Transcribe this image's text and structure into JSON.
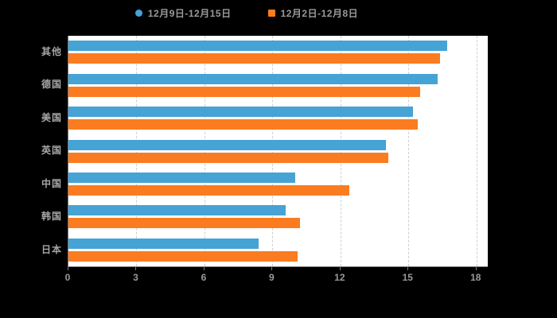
{
  "colors": {
    "background": "#000000",
    "plot_background": "#ffffff",
    "series1": "#45A3D5",
    "series2": "#FB7C20",
    "gridline": "#cfcfcf",
    "axis": "#7a7a7a",
    "label_text": "#a6a6a6"
  },
  "chart_data": {
    "type": "bar",
    "orientation": "horizontal",
    "title": "",
    "xlabel": "",
    "ylabel": "",
    "categories": [
      "其他",
      "德国",
      "美国",
      "英国",
      "中国",
      "韩国",
      "日本"
    ],
    "series": [
      {
        "name": "12月9日-12月15日",
        "color": "#45A3D5",
        "values": [
          16.7,
          16.3,
          15.2,
          14.0,
          10.0,
          9.6,
          8.4
        ]
      },
      {
        "name": "12月2日-12月8日",
        "color": "#FB7C20",
        "values": [
          16.4,
          15.5,
          15.4,
          14.1,
          12.4,
          10.2,
          10.1
        ]
      }
    ],
    "xticks": [
      0,
      3,
      6,
      9,
      12,
      15,
      18
    ],
    "xtick_labels": [
      "0",
      "3",
      "6",
      "9",
      "12",
      "15",
      "18"
    ],
    "xlim": [
      0,
      18.5
    ],
    "grid": true,
    "legend_position": "top"
  }
}
